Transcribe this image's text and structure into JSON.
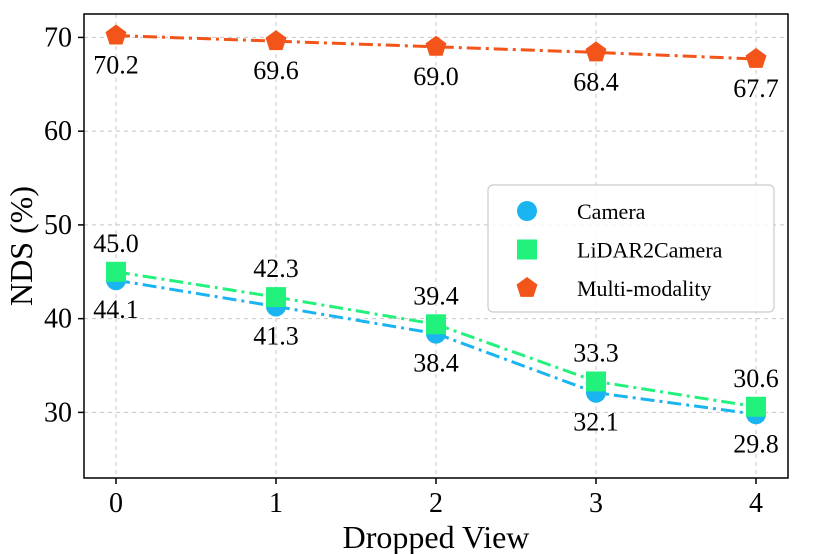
{
  "chart_data": {
    "type": "line",
    "xlabel": "Dropped View",
    "ylabel": "NDS (%)",
    "x": [
      0,
      1,
      2,
      3,
      4
    ],
    "xticks": [
      "0",
      "1",
      "2",
      "3",
      "4"
    ],
    "yticks": [
      "30",
      "40",
      "50",
      "60",
      "70"
    ],
    "xlim": [
      -0.2,
      4.2
    ],
    "ylim": [
      23,
      72.5
    ],
    "grid": true,
    "legend_position": "center-right",
    "series": [
      {
        "name": "Camera",
        "values": [
          44.1,
          41.3,
          38.4,
          32.1,
          29.8
        ],
        "labels": [
          "44.1",
          "41.3",
          "38.4",
          "32.1",
          "29.8"
        ],
        "label_position": "below",
        "marker": "circle",
        "color": "#1ab4f0"
      },
      {
        "name": "LiDAR2Camera",
        "values": [
          45.0,
          42.3,
          39.4,
          33.3,
          30.6
        ],
        "labels": [
          "45.0",
          "42.3",
          "39.4",
          "33.3",
          "30.6"
        ],
        "label_position": "above",
        "marker": "square",
        "color": "#22f27c"
      },
      {
        "name": "Multi-modality",
        "values": [
          70.2,
          69.6,
          69.0,
          68.4,
          67.7
        ],
        "labels": [
          "70.2",
          "69.6",
          "69.0",
          "68.4",
          "67.7"
        ],
        "label_position": "below",
        "marker": "pentagon",
        "color": "#f2541a"
      }
    ]
  }
}
